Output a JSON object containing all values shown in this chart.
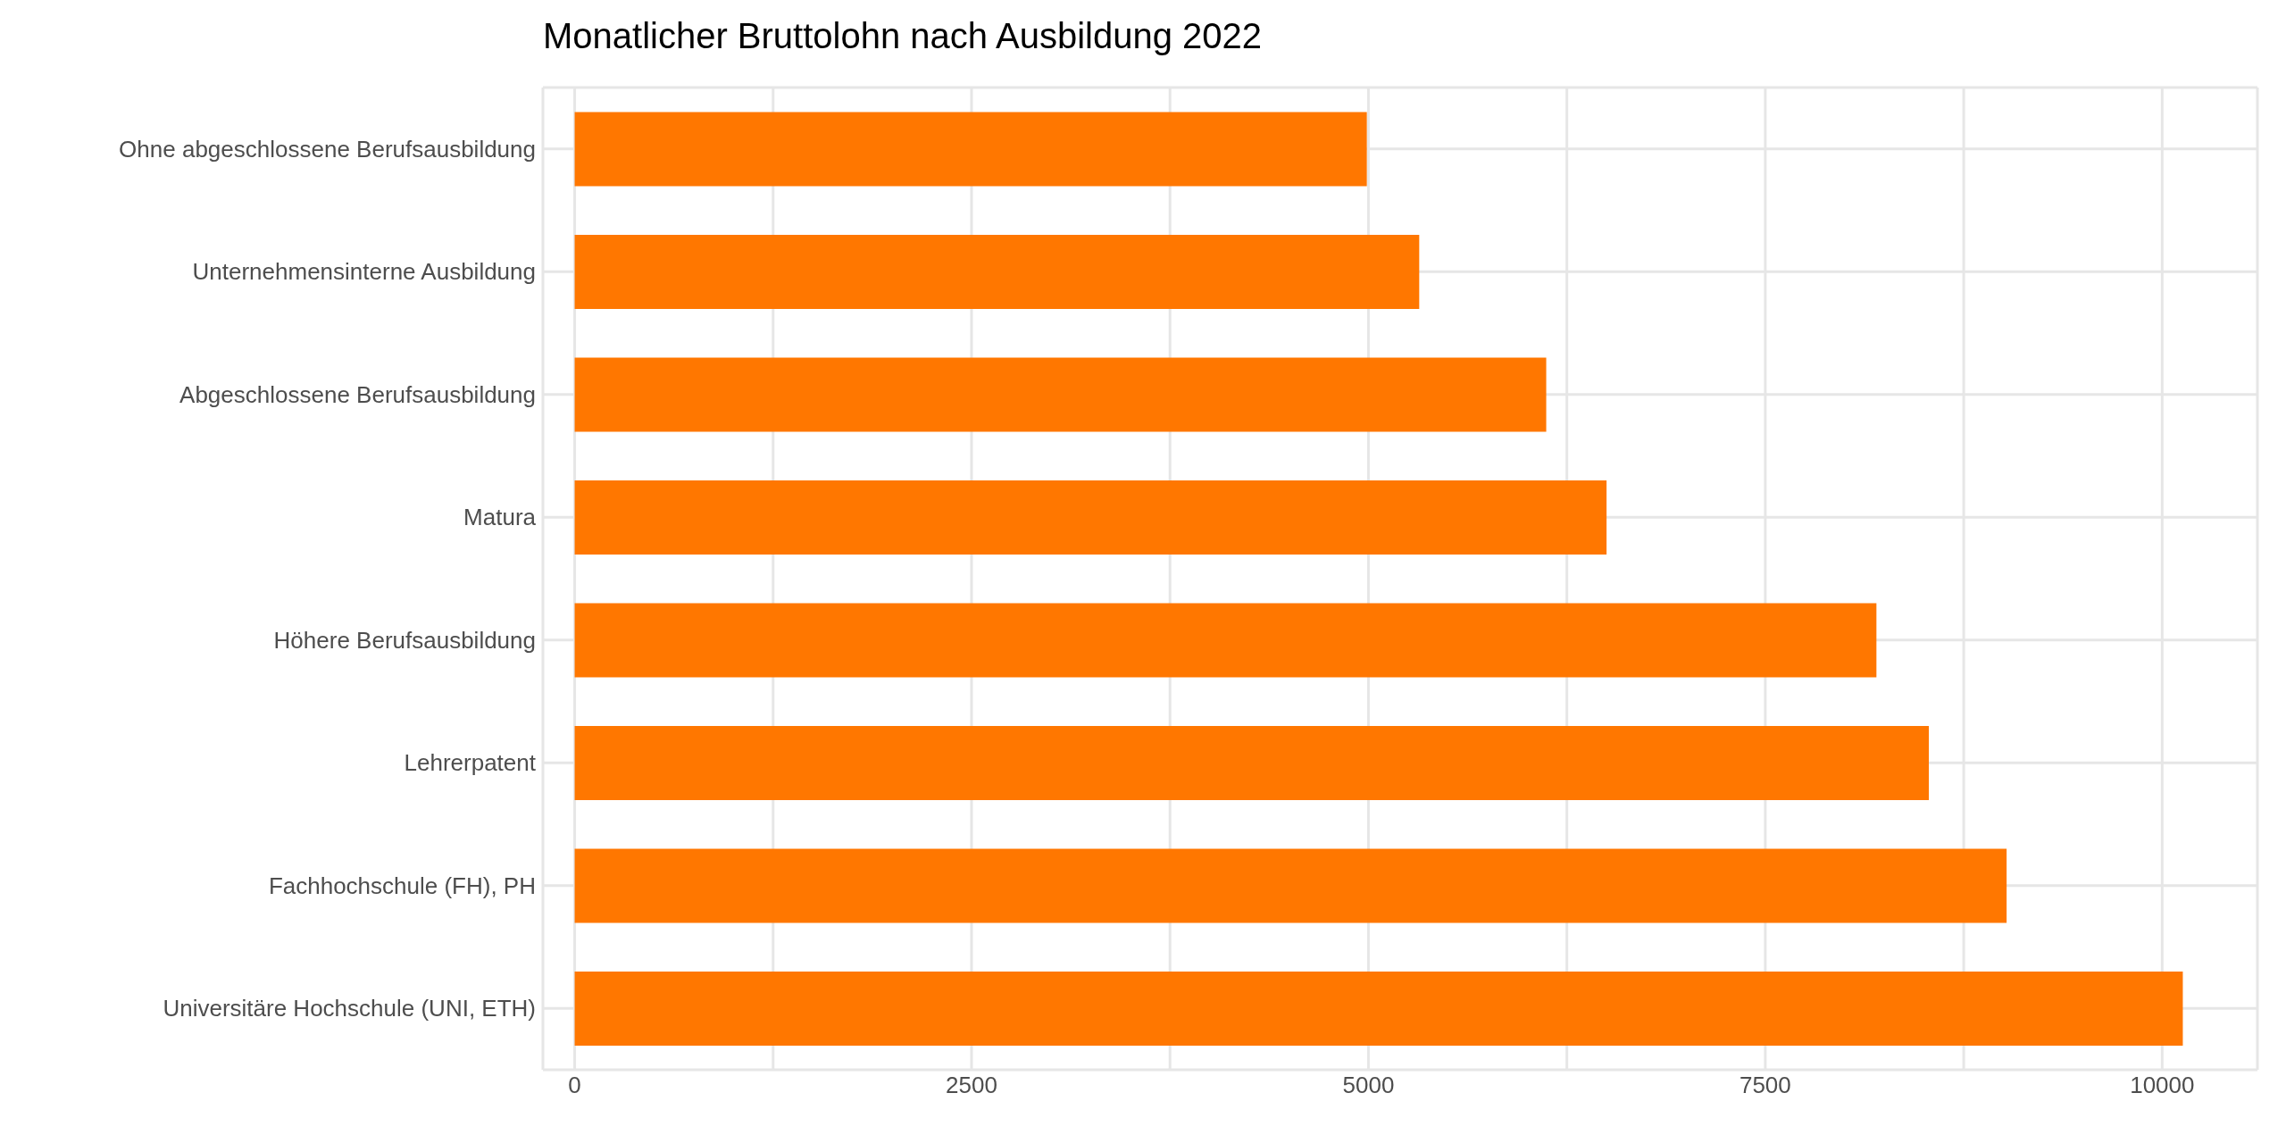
{
  "chart_data": {
    "type": "bar",
    "orientation": "horizontal",
    "title": "Monatlicher Bruttolohn nach Ausbildung 2022",
    "categories": [
      "Ohne abgeschlossene Berufsausbildung",
      "Unternehmensinterne Ausbildung",
      "Abgeschlossene Berufsausbildung",
      "Matura",
      "Höhere Berufsausbildung",
      "Lehrerpatent",
      "Fachhochschule (FH), PH",
      "Universitäre Hochschule (UNI, ETH)"
    ],
    "values": [
      4990,
      5320,
      6120,
      6500,
      8200,
      8530,
      9020,
      10130
    ],
    "color": "#ff7700",
    "xlim": [
      -200,
      10600
    ],
    "xticks": [
      0,
      {
        "value": 1250,
        "label": null
      },
      2500,
      {
        "value": 3750,
        "label": null
      },
      5000,
      {
        "value": 6250,
        "label": null
      },
      7500,
      {
        "value": 8750,
        "label": null
      },
      10000
    ],
    "grid": true
  }
}
